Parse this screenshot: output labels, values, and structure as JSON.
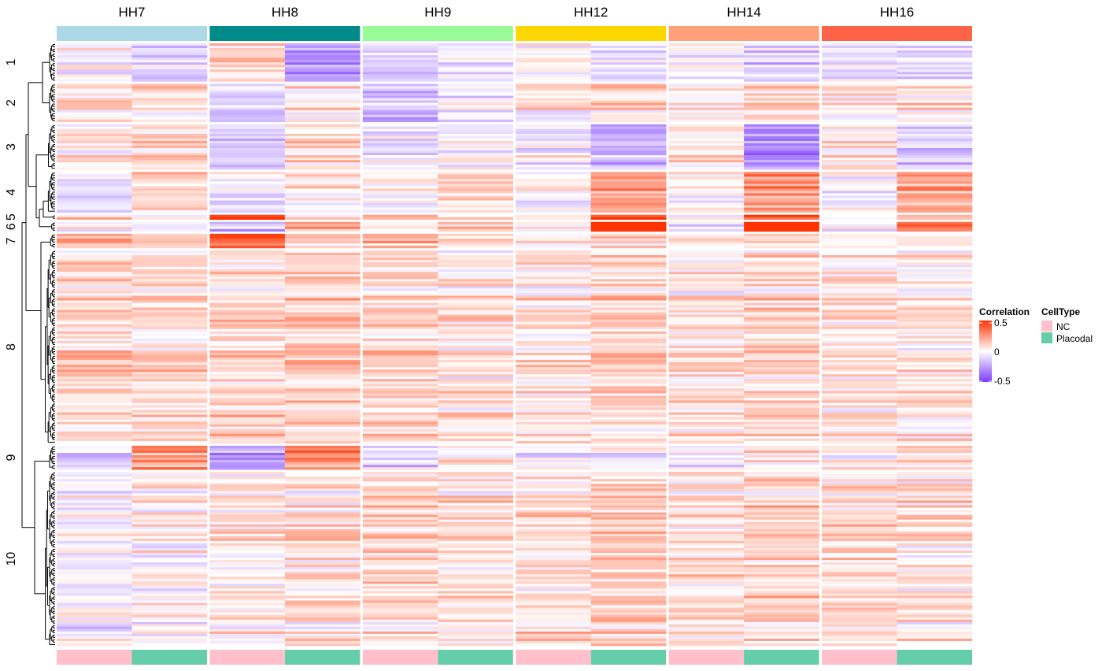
{
  "chart_data": {
    "type": "heatmap",
    "column_groups": [
      "HH7",
      "HH8",
      "HH9",
      "HH12",
      "HH14",
      "HH16"
    ],
    "group_colors": [
      "#add8e6",
      "#008b8b",
      "#98fb98",
      "#ffd700",
      "#ffa07a",
      "#ff6347"
    ],
    "cell_types": [
      "NC",
      "Placodal"
    ],
    "cell_type_colors": [
      "#ffc0cb",
      "#66cdaa"
    ],
    "row_clusters": [
      {
        "label": "1",
        "rows": 16
      },
      {
        "label": "2",
        "rows": 16
      },
      {
        "label": "3",
        "rows": 19
      },
      {
        "label": "4",
        "rows": 17
      },
      {
        "label": "5",
        "rows": 2
      },
      {
        "label": "6",
        "rows": 4
      },
      {
        "label": "7",
        "rows": 6
      },
      {
        "label": "8",
        "rows": 81
      },
      {
        "label": "9",
        "rows": 10
      },
      {
        "label": "10",
        "rows": 73
      }
    ],
    "cluster_pattern_note_free": true,
    "cluster_means": [
      [
        -0.02,
        -0.12,
        0.08,
        -0.28,
        -0.12,
        -0.06,
        0.02,
        -0.06,
        -0.02,
        -0.12,
        -0.04,
        -0.1
      ],
      [
        0.1,
        0.05,
        -0.1,
        0.04,
        -0.18,
        -0.04,
        0.02,
        0.08,
        0.02,
        0.1,
        0.04,
        0.08
      ],
      [
        0.02,
        0.06,
        -0.16,
        0.06,
        -0.08,
        -0.04,
        -0.04,
        -0.22,
        0.02,
        -0.3,
        0.02,
        -0.14
      ],
      [
        -0.04,
        0.08,
        -0.04,
        0.04,
        0.04,
        0.1,
        -0.02,
        0.26,
        0.02,
        0.28,
        0.0,
        0.22
      ],
      [
        0.18,
        0.04,
        0.5,
        0.1,
        0.2,
        0.12,
        0.04,
        0.55,
        0.06,
        0.48,
        0.02,
        0.25
      ],
      [
        0.02,
        -0.06,
        -0.18,
        0.14,
        0.08,
        0.16,
        0.0,
        0.58,
        -0.08,
        0.55,
        0.02,
        0.34
      ],
      [
        0.22,
        0.1,
        0.35,
        0.1,
        0.2,
        0.05,
        0.05,
        0.12,
        0.02,
        0.05,
        0.02,
        0.06
      ],
      [
        0.1,
        0.08,
        0.1,
        0.12,
        0.1,
        0.06,
        0.06,
        0.1,
        0.06,
        0.1,
        0.06,
        0.06
      ],
      [
        -0.12,
        0.22,
        -0.3,
        0.28,
        -0.1,
        0.02,
        -0.04,
        -0.04,
        -0.02,
        0.02,
        -0.02,
        0.04
      ],
      [
        -0.04,
        0.02,
        0.04,
        0.06,
        0.08,
        0.06,
        0.08,
        0.1,
        0.08,
        0.1,
        0.08,
        0.06
      ]
    ],
    "color_scale": {
      "min": -0.5,
      "mid": 0,
      "max": 0.5,
      "low_color": "#7b3dff",
      "mid_color": "#ffffff",
      "high_color": "#ff3300"
    }
  },
  "legend": {
    "correlation_title": "Correlation",
    "ticks": [
      "0.5",
      "0",
      "-0.5"
    ],
    "celltype_title": "CellType",
    "celltype_items": [
      "NC",
      "Placodal"
    ]
  }
}
